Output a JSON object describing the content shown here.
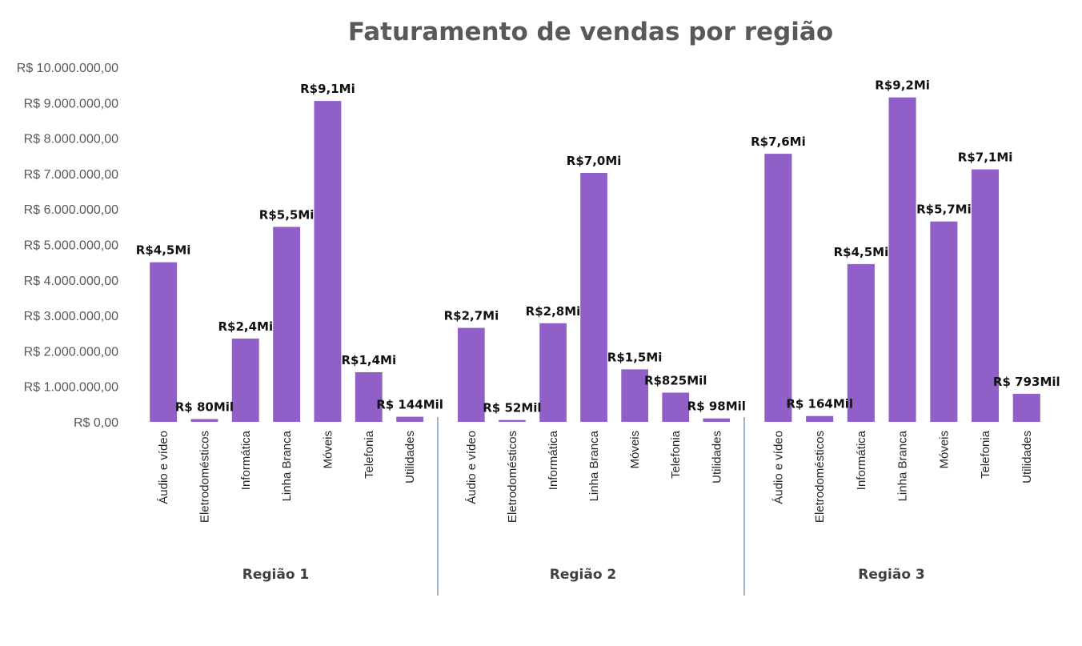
{
  "chart_data": {
    "type": "bar",
    "title": "Faturamento de vendas por região",
    "ylim": [
      0,
      10000000
    ],
    "yticks": [
      {
        "value": 0,
        "label": "R$ 0,00"
      },
      {
        "value": 1000000,
        "label": "R$ 1.000.000,00"
      },
      {
        "value": 2000000,
        "label": "R$ 2.000.000,00"
      },
      {
        "value": 3000000,
        "label": "R$ 3.000.000,00"
      },
      {
        "value": 4000000,
        "label": "R$ 4.000.000,00"
      },
      {
        "value": 5000000,
        "label": "R$ 5.000.000,00"
      },
      {
        "value": 6000000,
        "label": "R$ 6.000.000,00"
      },
      {
        "value": 7000000,
        "label": "R$ 7.000.000,00"
      },
      {
        "value": 8000000,
        "label": "R$ 8.000.000,00"
      },
      {
        "value": 9000000,
        "label": "R$ 9.000.000,00"
      },
      {
        "value": 10000000,
        "label": "R$ 10.000.000,00"
      }
    ],
    "grid": false,
    "bar_color": "#9060c8",
    "groups": [
      {
        "name": "Região 1",
        "bars": [
          {
            "category": "Áudio e vídeo",
            "value": 4500000,
            "label": "R$4,5Mi"
          },
          {
            "category": "Eletrodomésticos",
            "value": 80000,
            "label": "R$ 80Mil"
          },
          {
            "category": "Informática",
            "value": 2350000,
            "label": "R$2,4Mi"
          },
          {
            "category": "Linha Branca",
            "value": 5500000,
            "label": "R$5,5Mi"
          },
          {
            "category": "Móveis",
            "value": 9050000,
            "label": "R$9,1Mi"
          },
          {
            "category": "Telefonia",
            "value": 1400000,
            "label": "R$1,4Mi"
          },
          {
            "category": "Utilidades",
            "value": 144000,
            "label": "R$ 144Mil"
          }
        ]
      },
      {
        "name": "Região 2",
        "bars": [
          {
            "category": "Áudio e vídeo",
            "value": 2650000,
            "label": "R$2,7Mi"
          },
          {
            "category": "Eletrodomésticos",
            "value": 52000,
            "label": "R$ 52Mil"
          },
          {
            "category": "Informática",
            "value": 2780000,
            "label": "R$2,8Mi"
          },
          {
            "category": "Linha Branca",
            "value": 7020000,
            "label": "R$7,0Mi"
          },
          {
            "category": "Móveis",
            "value": 1480000,
            "label": "R$1,5Mi"
          },
          {
            "category": "Telefonia",
            "value": 825000,
            "label": "R$825Mil"
          },
          {
            "category": "Utilidades",
            "value": 98000,
            "label": "R$ 98Mil"
          }
        ]
      },
      {
        "name": "Região 3",
        "bars": [
          {
            "category": "Áudio e vídeo",
            "value": 7560000,
            "label": "R$7,6Mi"
          },
          {
            "category": "Eletrodomésticos",
            "value": 164000,
            "label": "R$ 164Mil"
          },
          {
            "category": "Informática",
            "value": 4450000,
            "label": "R$4,5Mi"
          },
          {
            "category": "Linha Branca",
            "value": 9150000,
            "label": "R$9,2Mi"
          },
          {
            "category": "Móveis",
            "value": 5650000,
            "label": "R$5,7Mi"
          },
          {
            "category": "Telefonia",
            "value": 7120000,
            "label": "R$7,1Mi"
          },
          {
            "category": "Utilidades",
            "value": 793000,
            "label": "R$ 793Mil"
          }
        ]
      }
    ]
  }
}
